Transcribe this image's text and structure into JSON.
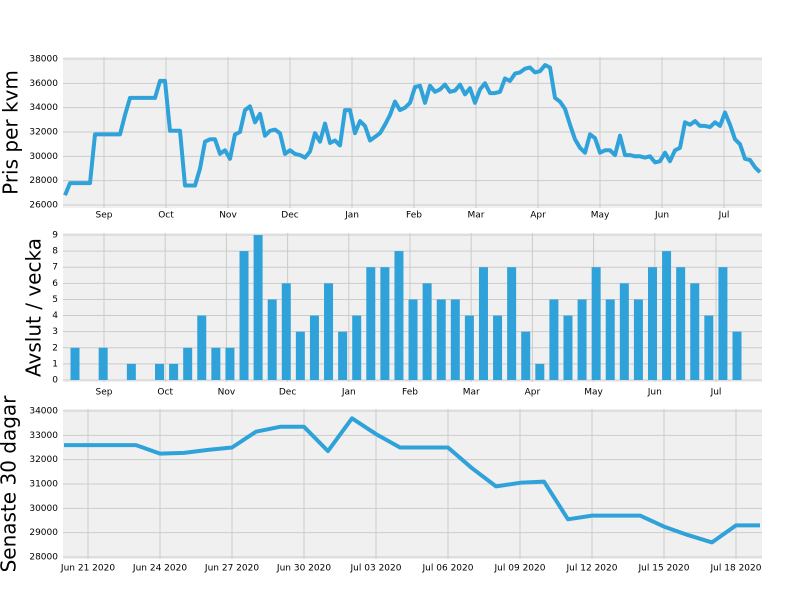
{
  "chart_data": [
    {
      "type": "line",
      "ylabel": "Pris per kvm",
      "color": "#30a2da",
      "grid": true,
      "xticks": [
        "Sep",
        "Oct",
        "Nov",
        "Dec",
        "Jan",
        "Feb",
        "Mar",
        "Apr",
        "May",
        "Jun",
        "Jul"
      ],
      "ylim": [
        26000,
        38000
      ],
      "yticks": [
        26000,
        28000,
        30000,
        32000,
        34000,
        36000,
        38000
      ],
      "values": [
        26800,
        27800,
        27800,
        27800,
        27800,
        27800,
        31800,
        31800,
        31800,
        31800,
        31800,
        31800,
        33400,
        34800,
        34800,
        34800,
        34800,
        34800,
        34800,
        36200,
        36200,
        32100,
        32100,
        32100,
        27600,
        27600,
        27600,
        29000,
        31200,
        31400,
        31400,
        30200,
        30500,
        29800,
        31800,
        32000,
        33800,
        34100,
        32800,
        33500,
        31700,
        32100,
        32200,
        31900,
        30200,
        30500,
        30200,
        30100,
        29900,
        30400,
        31900,
        31200,
        32700,
        31100,
        31300,
        30900,
        33800,
        33800,
        31900,
        32900,
        32500,
        31300,
        31600,
        31900,
        32600,
        33400,
        34500,
        33800,
        34000,
        34400,
        35700,
        35800,
        34400,
        35800,
        35300,
        35500,
        35900,
        35300,
        35400,
        35900,
        35100,
        35600,
        34400,
        35500,
        36000,
        35200,
        35200,
        35300,
        36400,
        36200,
        36800,
        36900,
        37200,
        37300,
        36900,
        37000,
        37500,
        37300,
        34800,
        34500,
        33900,
        32600,
        31400,
        30700,
        30300,
        31800,
        31500,
        30300,
        30500,
        30500,
        30100,
        31700,
        30100,
        30100,
        30000,
        30000,
        29900,
        30000,
        29500,
        29600,
        30300,
        29600,
        30500,
        30700,
        32800,
        32600,
        32900,
        32500,
        32500,
        32400,
        32800,
        32500,
        33600,
        32600,
        31400,
        31000,
        29800,
        29700,
        29100,
        28700
      ]
    },
    {
      "type": "bar",
      "ylabel": "Avslut / vecka",
      "color": "#30a2da",
      "grid": true,
      "xticks": [
        "Sep",
        "Oct",
        "Nov",
        "Dec",
        "Jan",
        "Feb",
        "Mar",
        "Apr",
        "May",
        "Jun",
        "Jul"
      ],
      "ylim": [
        0,
        9
      ],
      "yticks": [
        0,
        1,
        2,
        3,
        4,
        5,
        6,
        7,
        8,
        9
      ],
      "values": [
        2,
        0,
        2,
        0,
        1,
        0,
        1,
        1,
        2,
        4,
        2,
        2,
        8,
        9,
        5,
        6,
        3,
        4,
        6,
        3,
        4,
        7,
        7,
        8,
        5,
        6,
        5,
        5,
        4,
        7,
        4,
        7,
        3,
        1,
        5,
        4,
        5,
        7,
        5,
        6,
        5,
        7,
        8,
        7,
        6,
        4,
        7,
        3
      ]
    },
    {
      "type": "line",
      "ylabel": "Senaste 30 dagar",
      "color": "#30a2da",
      "grid": true,
      "xlim": [
        "Jun 20 2020",
        "Jul 19 2020"
      ],
      "xticks": [
        "Jun 21 2020",
        "Jun 24 2020",
        "Jun 27 2020",
        "Jun 30 2020",
        "Jul 03 2020",
        "Jul 06 2020",
        "Jul 09 2020",
        "Jul 12 2020",
        "Jul 15 2020",
        "Jul 18 2020"
      ],
      "ylim": [
        28000,
        34000
      ],
      "yticks": [
        28000,
        29000,
        30000,
        31000,
        32000,
        33000,
        34000
      ],
      "x": [
        "Jun 20 2020",
        "Jun 21 2020",
        "Jun 22 2020",
        "Jun 23 2020",
        "Jun 24 2020",
        "Jun 25 2020",
        "Jun 26 2020",
        "Jun 27 2020",
        "Jun 28 2020",
        "Jun 29 2020",
        "Jun 30 2020",
        "Jul 01 2020",
        "Jul 02 2020",
        "Jul 03 2020",
        "Jul 04 2020",
        "Jul 05 2020",
        "Jul 06 2020",
        "Jul 07 2020",
        "Jul 08 2020",
        "Jul 09 2020",
        "Jul 10 2020",
        "Jul 11 2020",
        "Jul 12 2020",
        "Jul 13 2020",
        "Jul 14 2020",
        "Jul 15 2020",
        "Jul 16 2020",
        "Jul 17 2020",
        "Jul 18 2020",
        "Jul 19 2020"
      ],
      "values": [
        32600,
        32600,
        32600,
        32600,
        32250,
        32280,
        32400,
        32500,
        33150,
        33350,
        33350,
        32350,
        33700,
        33050,
        32500,
        32500,
        32500,
        31650,
        30900,
        31050,
        31100,
        29550,
        29700,
        29700,
        29700,
        29250,
        28900,
        28600,
        29300,
        29300
      ]
    }
  ]
}
